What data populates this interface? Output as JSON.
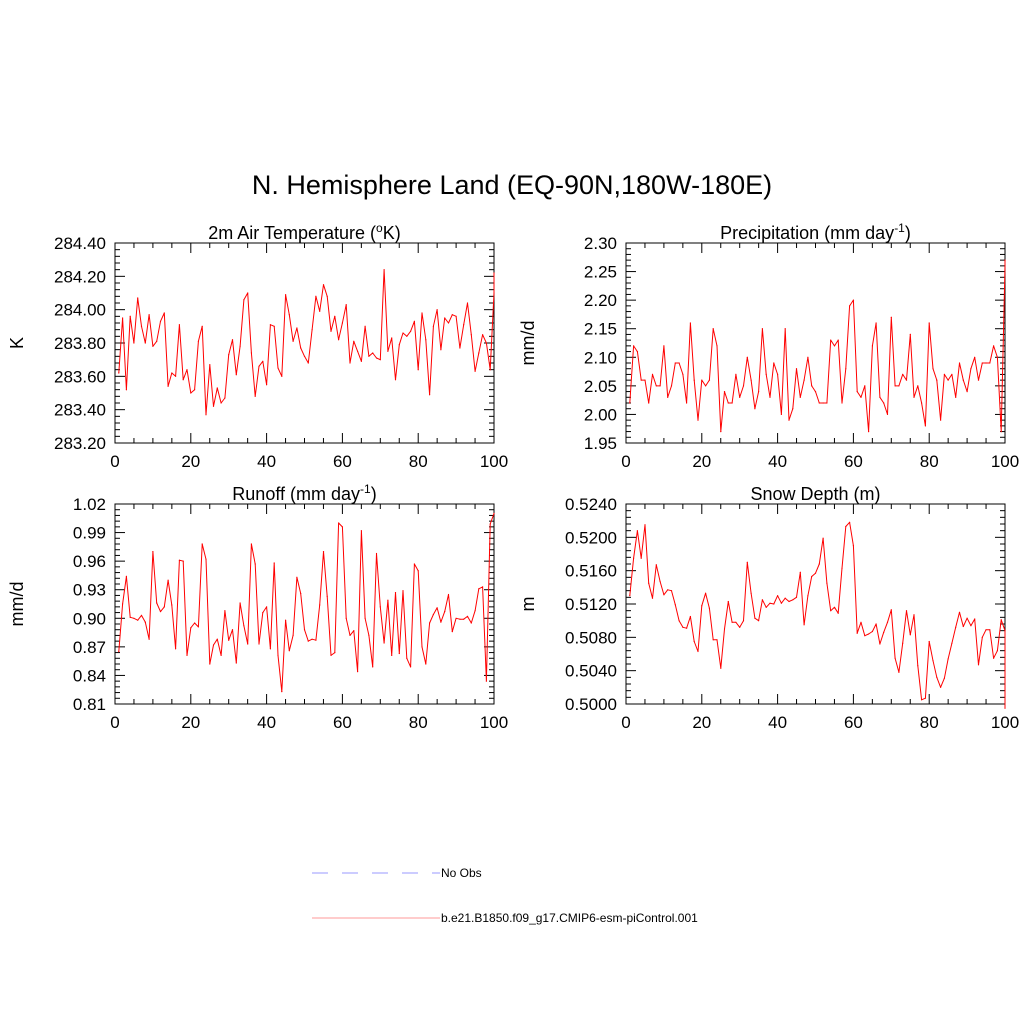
{
  "title": "N. Hemisphere Land (EQ-90N,180W-180E)",
  "legend": [
    {
      "label": "No Obs",
      "color": "#9999ff",
      "style": "dashed"
    },
    {
      "label": "b.e21.B1850.f09_g17.CMIP6-esm-piControl.001",
      "color": "#ff0000",
      "style": "solid"
    }
  ],
  "chart_data": [
    {
      "type": "line",
      "title": "2m Air Temperature",
      "unit_base": "o",
      "unit_pre": "2m Air Temperature (",
      "unit_post": "K)",
      "ylabel": "K",
      "xlim": [
        0,
        100
      ],
      "ylim": [
        283.2,
        284.4
      ],
      "xticks": [
        0,
        20,
        40,
        60,
        80,
        100
      ],
      "yticks": [
        "283.20",
        "283.40",
        "283.60",
        "283.80",
        "284.00",
        "284.20",
        "284.40"
      ],
      "color": "#ff0000",
      "x": [
        1,
        2,
        3,
        4,
        5,
        6,
        7,
        8,
        9,
        10,
        11,
        12,
        13,
        14,
        15,
        16,
        17,
        18,
        19,
        20,
        21,
        22,
        23,
        24,
        25,
        26,
        27,
        28,
        29,
        30,
        31,
        32,
        33,
        34,
        35,
        36,
        37,
        38,
        39,
        40,
        41,
        42,
        43,
        44,
        45,
        46,
        47,
        48,
        49,
        50,
        51,
        52,
        53,
        54,
        55,
        56,
        57,
        58,
        59,
        60,
        61,
        62,
        63,
        64,
        65,
        66,
        67,
        68,
        69,
        70,
        71,
        72,
        73,
        74,
        75,
        76,
        77,
        78,
        79,
        80,
        81,
        82,
        83,
        84,
        85,
        86,
        87,
        88,
        89,
        90,
        91,
        92,
        93,
        94,
        95,
        96,
        97,
        98,
        99,
        100
      ],
      "values": [
        283.62,
        283.95,
        283.52,
        283.96,
        283.8,
        284.07,
        283.9,
        283.8,
        283.97,
        283.78,
        283.81,
        283.93,
        283.98,
        283.54,
        283.62,
        283.6,
        283.91,
        283.58,
        283.64,
        283.5,
        283.52,
        283.81,
        283.9,
        283.37,
        283.67,
        283.42,
        283.53,
        283.44,
        283.47,
        283.73,
        283.82,
        283.61,
        283.78,
        284.06,
        284.1,
        283.74,
        283.48,
        283.66,
        283.69,
        283.55,
        283.91,
        283.9,
        283.65,
        283.6,
        284.09,
        283.97,
        283.81,
        283.89,
        283.77,
        283.72,
        283.68,
        283.88,
        284.08,
        283.99,
        284.15,
        284.08,
        283.87,
        283.96,
        283.82,
        283.92,
        284.03,
        283.68,
        283.81,
        283.75,
        283.69,
        283.9,
        283.72,
        283.74,
        283.71,
        283.7,
        284.24,
        283.75,
        283.83,
        283.58,
        283.79,
        283.86,
        283.84,
        283.87,
        283.93,
        283.64,
        283.98,
        283.82,
        283.49,
        283.9,
        284.0,
        283.76,
        283.95,
        283.92,
        283.97,
        283.96,
        283.77,
        283.91,
        284.04,
        283.85,
        283.63,
        283.74,
        283.85,
        283.8,
        283.64,
        284.1
      ],
      "end_spike": 284.22
    },
    {
      "type": "line",
      "title": "Precipitation",
      "unit_pre": "Precipitation (mm day",
      "unit_sup": "-1",
      "unit_post": ")",
      "ylabel": "mm/d",
      "xlim": [
        0,
        100
      ],
      "ylim": [
        1.95,
        2.3
      ],
      "xticks": [
        0,
        20,
        40,
        60,
        80,
        100
      ],
      "yticks": [
        "1.95",
        "2.00",
        "2.05",
        "2.10",
        "2.15",
        "2.20",
        "2.25",
        "2.30"
      ],
      "color": "#ff0000",
      "x": [
        1,
        2,
        3,
        4,
        5,
        6,
        7,
        8,
        9,
        10,
        11,
        12,
        13,
        14,
        15,
        16,
        17,
        18,
        19,
        20,
        21,
        22,
        23,
        24,
        25,
        26,
        27,
        28,
        29,
        30,
        31,
        32,
        33,
        34,
        35,
        36,
        37,
        38,
        39,
        40,
        41,
        42,
        43,
        44,
        45,
        46,
        47,
        48,
        49,
        50,
        51,
        52,
        53,
        54,
        55,
        56,
        57,
        58,
        59,
        60,
        61,
        62,
        63,
        64,
        65,
        66,
        67,
        68,
        69,
        70,
        71,
        72,
        73,
        74,
        75,
        76,
        77,
        78,
        79,
        80,
        81,
        82,
        83,
        84,
        85,
        86,
        87,
        88,
        89,
        90,
        91,
        92,
        93,
        94,
        95,
        96,
        97,
        98,
        99,
        100
      ],
      "values": [
        2.02,
        2.12,
        2.11,
        2.06,
        2.06,
        2.02,
        2.07,
        2.05,
        2.05,
        2.12,
        2.03,
        2.05,
        2.09,
        2.09,
        2.07,
        2.02,
        2.16,
        2.06,
        1.99,
        2.06,
        2.05,
        2.06,
        2.15,
        2.12,
        1.97,
        2.04,
        2.02,
        2.02,
        2.07,
        2.03,
        2.05,
        2.1,
        2.06,
        2.01,
        2.04,
        2.15,
        2.07,
        2.03,
        2.09,
        2.07,
        2.0,
        2.15,
        1.99,
        2.01,
        2.08,
        2.03,
        2.06,
        2.1,
        2.05,
        2.04,
        2.02,
        2.02,
        2.02,
        2.13,
        2.12,
        2.13,
        2.02,
        2.08,
        2.19,
        2.2,
        2.04,
        2.03,
        2.05,
        1.97,
        2.12,
        2.16,
        2.03,
        2.02,
        2.0,
        2.17,
        2.05,
        2.05,
        2.07,
        2.06,
        2.14,
        2.03,
        2.05,
        2.02,
        1.98,
        2.16,
        2.08,
        2.06,
        1.99,
        2.07,
        2.06,
        2.07,
        2.03,
        2.09,
        2.06,
        2.04,
        2.08,
        2.1,
        2.06,
        2.09,
        2.09,
        2.09,
        2.12,
        2.1,
        1.97,
        2.26
      ],
      "end_spike": 2.27
    },
    {
      "type": "line",
      "title": "Runoff",
      "unit_pre": "Runoff (mm day",
      "unit_sup": "-1",
      "unit_post": ")",
      "ylabel": "mm/d",
      "xlim": [
        0,
        100
      ],
      "ylim": [
        0.81,
        1.02
      ],
      "xticks": [
        0,
        20,
        40,
        60,
        80,
        100
      ],
      "yticks": [
        "0.81",
        "0.84",
        "0.87",
        "0.90",
        "0.93",
        "0.96",
        "0.99",
        "1.02"
      ],
      "color": "#ff0000",
      "x": [
        1,
        2,
        3,
        4,
        5,
        6,
        7,
        8,
        9,
        10,
        11,
        12,
        13,
        14,
        15,
        16,
        17,
        18,
        19,
        20,
        21,
        22,
        23,
        24,
        25,
        26,
        27,
        28,
        29,
        30,
        31,
        32,
        33,
        34,
        35,
        36,
        37,
        38,
        39,
        40,
        41,
        42,
        43,
        44,
        45,
        46,
        47,
        48,
        49,
        50,
        51,
        52,
        53,
        54,
        55,
        56,
        57,
        58,
        59,
        60,
        61,
        62,
        63,
        64,
        65,
        66,
        67,
        68,
        69,
        70,
        71,
        72,
        73,
        74,
        75,
        76,
        77,
        78,
        79,
        80,
        81,
        82,
        83,
        84,
        85,
        86,
        87,
        88,
        89,
        90,
        91,
        92,
        93,
        94,
        95,
        96,
        97,
        98,
        99,
        100
      ],
      "values": [
        0.865,
        0.915,
        0.944,
        0.901,
        0.9,
        0.898,
        0.903,
        0.896,
        0.878,
        0.97,
        0.916,
        0.907,
        0.912,
        0.94,
        0.914,
        0.868,
        0.961,
        0.96,
        0.861,
        0.89,
        0.895,
        0.891,
        0.978,
        0.962,
        0.852,
        0.872,
        0.878,
        0.861,
        0.908,
        0.877,
        0.888,
        0.853,
        0.916,
        0.892,
        0.873,
        0.978,
        0.957,
        0.873,
        0.906,
        0.912,
        0.868,
        0.958,
        0.861,
        0.823,
        0.898,
        0.866,
        0.882,
        0.943,
        0.926,
        0.888,
        0.876,
        0.878,
        0.877,
        0.914,
        0.97,
        0.923,
        0.861,
        0.864,
        1.0,
        0.996,
        0.9,
        0.882,
        0.887,
        0.844,
        0.992,
        0.9,
        0.882,
        0.849,
        0.968,
        0.912,
        0.874,
        0.919,
        0.861,
        0.927,
        0.863,
        0.929,
        0.858,
        0.849,
        0.957,
        0.95,
        0.87,
        0.852,
        0.895,
        0.904,
        0.911,
        0.896,
        0.907,
        0.925,
        0.886,
        0.9,
        0.899,
        0.899,
        0.902,
        0.895,
        0.908,
        0.931,
        0.933,
        0.834,
        0.999,
        1.01
      ],
      "end_spike": 1.01
    },
    {
      "type": "line",
      "title": "Snow Depth (m)",
      "ylabel": "m",
      "xlim": [
        0,
        100
      ],
      "ylim": [
        0.5,
        0.524
      ],
      "xticks": [
        0,
        20,
        40,
        60,
        80,
        100
      ],
      "yticks": [
        "0.5000",
        "0.5040",
        "0.5080",
        "0.5120",
        "0.5160",
        "0.5200",
        "0.5240"
      ],
      "color": "#ff0000",
      "x": [
        1,
        2,
        3,
        4,
        5,
        6,
        7,
        8,
        9,
        10,
        11,
        12,
        13,
        14,
        15,
        16,
        17,
        18,
        19,
        20,
        21,
        22,
        23,
        24,
        25,
        26,
        27,
        28,
        29,
        30,
        31,
        32,
        33,
        34,
        35,
        36,
        37,
        38,
        39,
        40,
        41,
        42,
        43,
        44,
        45,
        46,
        47,
        48,
        49,
        50,
        51,
        52,
        53,
        54,
        55,
        56,
        57,
        58,
        59,
        60,
        61,
        62,
        63,
        64,
        65,
        66,
        67,
        68,
        69,
        70,
        71,
        72,
        73,
        74,
        75,
        76,
        77,
        78,
        79,
        80,
        81,
        82,
        83,
        84,
        85,
        86,
        87,
        88,
        89,
        90,
        91,
        92,
        93,
        94,
        95,
        96,
        97,
        98,
        99,
        100
      ],
      "values": [
        0.513,
        0.5175,
        0.5208,
        0.5175,
        0.5215,
        0.5145,
        0.5127,
        0.5167,
        0.5147,
        0.5131,
        0.5137,
        0.5136,
        0.5119,
        0.51,
        0.5092,
        0.5091,
        0.5105,
        0.5075,
        0.5063,
        0.5118,
        0.5133,
        0.5115,
        0.5077,
        0.5077,
        0.5043,
        0.509,
        0.5123,
        0.5098,
        0.5098,
        0.5092,
        0.51,
        0.517,
        0.5133,
        0.5103,
        0.51,
        0.5125,
        0.5116,
        0.5121,
        0.512,
        0.513,
        0.5121,
        0.5127,
        0.5123,
        0.5125,
        0.5128,
        0.5158,
        0.5095,
        0.513,
        0.5153,
        0.5157,
        0.5168,
        0.5199,
        0.5145,
        0.5112,
        0.5116,
        0.5109,
        0.5163,
        0.5213,
        0.5218,
        0.519,
        0.5085,
        0.5098,
        0.5082,
        0.5084,
        0.5087,
        0.5096,
        0.5072,
        0.5086,
        0.5098,
        0.5113,
        0.5055,
        0.5038,
        0.5073,
        0.5112,
        0.5083,
        0.5107,
        0.5046,
        0.5005,
        0.5007,
        0.5075,
        0.5052,
        0.5032,
        0.502,
        0.5031,
        0.5054,
        0.5073,
        0.5092,
        0.511,
        0.5093,
        0.5103,
        0.5094,
        0.5102,
        0.5047,
        0.508,
        0.5089,
        0.5089,
        0.5055,
        0.5064,
        0.5101,
        0.5088
      ],
      "end_spike": 0.4995
    }
  ]
}
